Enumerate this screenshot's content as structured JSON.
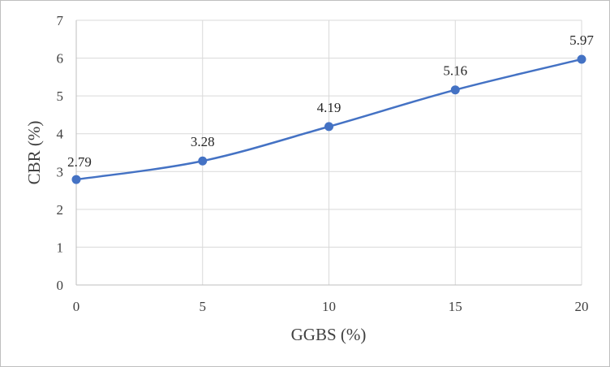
{
  "chart_data": {
    "type": "line",
    "title": "",
    "xlabel": "GGBS (%)",
    "ylabel": "CBR (%)",
    "x": [
      0,
      5,
      10,
      15,
      20
    ],
    "xticks": [
      "0",
      "5",
      "10",
      "15",
      "20"
    ],
    "xlim": [
      0,
      20
    ],
    "yticks": [
      "0",
      "1",
      "2",
      "3",
      "4",
      "5",
      "6",
      "7"
    ],
    "ylim": [
      0,
      7
    ],
    "grid": true,
    "legend": "none",
    "series": [
      {
        "values": [
          2.79,
          3.28,
          4.19,
          5.16,
          5.97
        ],
        "labels": [
          "2.79",
          "3.28",
          "4.19",
          "5.16",
          "5.97"
        ],
        "color": "#4472c4",
        "smooth": true
      }
    ]
  }
}
